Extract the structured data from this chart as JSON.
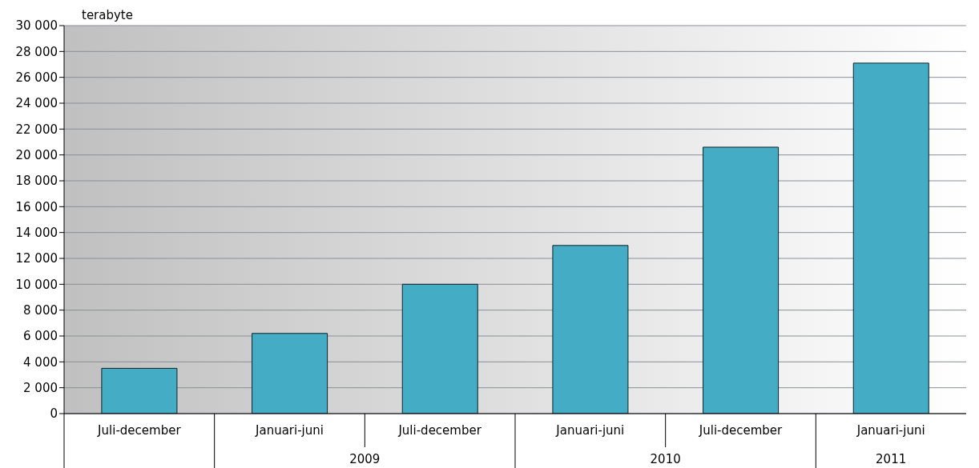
{
  "chart_data": {
    "type": "bar",
    "ylabel": "terabyte",
    "categories": [
      "Juli-december",
      "Januari-juni",
      "Juli-december",
      "Januari-juni",
      "Juli-december",
      "Januari-juni"
    ],
    "values": [
      3500,
      6200,
      10000,
      13000,
      20600,
      27100
    ],
    "color": "#45acc6",
    "ylim": [
      0,
      30000
    ],
    "yticks": [
      0,
      {
        "value": 2000,
        "label": "2 000"
      },
      {
        "value": 4000,
        "label": "4 000"
      },
      {
        "value": 6000,
        "label": "6 000"
      },
      {
        "value": 8000,
        "label": "8 000"
      },
      {
        "value": 10000,
        "label": "10 000"
      },
      {
        "value": 12000,
        "label": "12 000"
      },
      {
        "value": 14000,
        "label": "14 000"
      },
      {
        "value": 16000,
        "label": "16 000"
      },
      {
        "value": 18000,
        "label": "18 000"
      },
      {
        "value": 20000,
        "label": "20 000"
      },
      {
        "value": 22000,
        "label": "22 000"
      },
      {
        "value": 24000,
        "label": "24 000"
      },
      {
        "value": 26000,
        "label": "26 000"
      },
      {
        "value": 28000,
        "label": "28 000"
      },
      {
        "value": 30000,
        "label": "30 000"
      }
    ],
    "grid": "y",
    "annotations": [
      "2009",
      "2010",
      "2011"
    ]
  }
}
